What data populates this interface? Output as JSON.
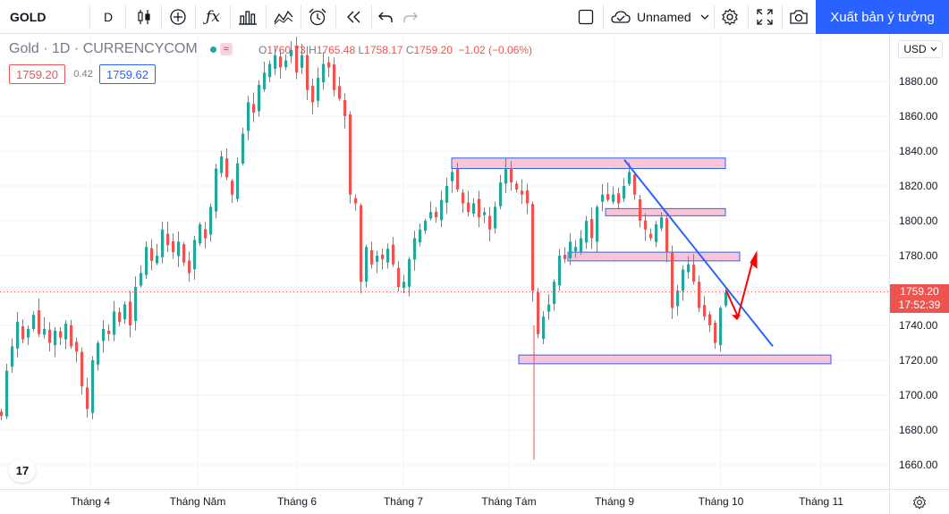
{
  "toolbar": {
    "symbol": "GOLD",
    "interval": "D",
    "layout_name": "Unnamed",
    "publish_label": "Xuất bản ý tưởng",
    "icons": [
      "candles-icon",
      "plus-circle-icon",
      "fx-icon",
      "bar-template-icon",
      "indicator-icon",
      "alarm-icon",
      "replay-icon",
      "undo-icon",
      "redo-icon",
      "checkbox-icon",
      "cloud-icon",
      "settings-icon",
      "fullscreen-icon",
      "camera-icon"
    ]
  },
  "legend": {
    "title": "Gold · 1D · CURRENCYCOM",
    "o_label": "O",
    "o": "1760.73",
    "h_label": "H",
    "h": "1765.48",
    "l_label": "L",
    "l": "1758.17",
    "c_label": "C",
    "c": "1759.20",
    "change": "−1.02 (−0.06%)",
    "bid": "1759.20",
    "spread": "0.42",
    "ask": "1759.62"
  },
  "price_axis": {
    "currency": "USD",
    "ticks": [
      "1880.00",
      "1860.00",
      "1840.00",
      "1820.00",
      "1800.00",
      "1780.00",
      "1760.00",
      "1740.00",
      "1720.00",
      "1700.00",
      "1680.00",
      "1660.00"
    ],
    "last_price": "1759.20",
    "countdown": "17:52:39"
  },
  "time_axis": {
    "labels": [
      "Tháng 4",
      "Tháng Năm",
      "Tháng 6",
      "Tháng 7",
      "Tháng Tám",
      "Tháng 9",
      "Tháng 10",
      "Tháng 11"
    ]
  },
  "colors": {
    "up": "#26a69a",
    "down": "#ef5350",
    "zone_fill": "#f8bbd0",
    "zone_border": "#2962ff",
    "trendline": "#2962ff",
    "arrow": "#ff0000",
    "accent": "#2962ff"
  },
  "chart_data": {
    "type": "candlestick",
    "symbol": "Gold",
    "interval": "1D",
    "ylim": [
      1655,
      1895
    ],
    "y_ticks": [
      1660,
      1680,
      1700,
      1720,
      1740,
      1760,
      1780,
      1800,
      1820,
      1840,
      1860,
      1880
    ],
    "x_labels": [
      "Tháng 4",
      "Tháng Năm",
      "Tháng 6",
      "Tháng 7",
      "Tháng Tám",
      "Tháng 9",
      "Tháng 10",
      "Tháng 11"
    ],
    "close_path": [
      [
        0,
        1688
      ],
      [
        6,
        1714
      ],
      [
        12,
        1728
      ],
      [
        18,
        1742
      ],
      [
        24,
        1732
      ],
      [
        30,
        1738
      ],
      [
        36,
        1746
      ],
      [
        42,
        1735
      ],
      [
        48,
        1738
      ],
      [
        54,
        1730
      ],
      [
        60,
        1737
      ],
      [
        66,
        1733
      ],
      [
        72,
        1741
      ],
      [
        78,
        1728
      ],
      [
        84,
        1725
      ],
      [
        90,
        1705
      ],
      [
        96,
        1692
      ],
      [
        102,
        1720
      ],
      [
        108,
        1730
      ],
      [
        114,
        1738
      ],
      [
        120,
        1735
      ],
      [
        126,
        1748
      ],
      [
        132,
        1742
      ],
      [
        138,
        1752
      ],
      [
        144,
        1740
      ],
      [
        150,
        1762
      ],
      [
        156,
        1770
      ],
      [
        162,
        1785
      ],
      [
        168,
        1777
      ],
      [
        174,
        1780
      ],
      [
        180,
        1795
      ],
      [
        186,
        1786
      ],
      [
        192,
        1782
      ],
      [
        198,
        1788
      ],
      [
        204,
        1776
      ],
      [
        210,
        1770
      ],
      [
        216,
        1789
      ],
      [
        222,
        1798
      ],
      [
        228,
        1790
      ],
      [
        234,
        1808
      ],
      [
        240,
        1830
      ],
      [
        246,
        1837
      ],
      [
        252,
        1825
      ],
      [
        258,
        1815
      ],
      [
        264,
        1833
      ],
      [
        270,
        1850
      ],
      [
        276,
        1868
      ],
      [
        282,
        1862
      ],
      [
        288,
        1878
      ],
      [
        294,
        1885
      ],
      [
        300,
        1890
      ],
      [
        306,
        1895
      ],
      [
        312,
        1888
      ],
      [
        318,
        1892
      ],
      [
        324,
        1898
      ],
      [
        330,
        1885
      ],
      [
        336,
        1895
      ],
      [
        342,
        1875
      ],
      [
        348,
        1868
      ],
      [
        354,
        1882
      ],
      [
        360,
        1890
      ],
      [
        366,
        1888
      ],
      [
        372,
        1875
      ],
      [
        378,
        1870
      ],
      [
        384,
        1860
      ],
      [
        390,
        1815
      ],
      [
        396,
        1810
      ],
      [
        402,
        1765
      ],
      [
        408,
        1785
      ],
      [
        414,
        1775
      ],
      [
        420,
        1780
      ],
      [
        426,
        1778
      ],
      [
        432,
        1784
      ],
      [
        438,
        1775
      ],
      [
        444,
        1762
      ],
      [
        450,
        1765
      ],
      [
        456,
        1778
      ],
      [
        462,
        1790
      ],
      [
        468,
        1795
      ],
      [
        474,
        1800
      ],
      [
        480,
        1805
      ],
      [
        486,
        1802
      ],
      [
        492,
        1812
      ],
      [
        498,
        1820
      ],
      [
        504,
        1828
      ],
      [
        510,
        1818
      ],
      [
        516,
        1810
      ],
      [
        522,
        1805
      ],
      [
        528,
        1810
      ],
      [
        534,
        1802
      ],
      [
        540,
        1805
      ],
      [
        546,
        1795
      ],
      [
        552,
        1808
      ],
      [
        558,
        1822
      ],
      [
        564,
        1830
      ],
      [
        570,
        1822
      ],
      [
        576,
        1818
      ],
      [
        582,
        1815
      ],
      [
        588,
        1810
      ],
      [
        594,
        1760
      ],
      [
        600,
        1735
      ],
      [
        606,
        1745
      ],
      [
        612,
        1752
      ],
      [
        618,
        1765
      ],
      [
        624,
        1780
      ],
      [
        630,
        1778
      ],
      [
        636,
        1788
      ],
      [
        642,
        1785
      ],
      [
        648,
        1790
      ],
      [
        654,
        1800
      ],
      [
        660,
        1790
      ],
      [
        666,
        1808
      ],
      [
        672,
        1815
      ],
      [
        678,
        1812
      ],
      [
        684,
        1815
      ],
      [
        690,
        1810
      ],
      [
        696,
        1820
      ],
      [
        702,
        1828
      ],
      [
        708,
        1815
      ],
      [
        714,
        1800
      ],
      [
        720,
        1795
      ],
      [
        726,
        1790
      ],
      [
        732,
        1798
      ],
      [
        738,
        1802
      ],
      [
        744,
        1782
      ],
      [
        750,
        1750
      ],
      [
        756,
        1760
      ],
      [
        762,
        1772
      ],
      [
        768,
        1775
      ],
      [
        774,
        1765
      ],
      [
        780,
        1750
      ],
      [
        786,
        1745
      ],
      [
        792,
        1740
      ],
      [
        798,
        1730
      ],
      [
        804,
        1750
      ],
      [
        810,
        1759
      ]
    ],
    "zones": [
      {
        "y1": 1830,
        "y2": 1836,
        "x_start": 505,
        "x_end": 811
      },
      {
        "y1": 1803,
        "y2": 1807,
        "x_start": 677,
        "x_end": 811
      },
      {
        "y1": 1777,
        "y2": 1782,
        "x_start": 635,
        "x_end": 827
      },
      {
        "y1": 1718,
        "y2": 1723,
        "x_start": 580,
        "x_end": 929
      }
    ],
    "trendline": {
      "from": [
        698,
        1835
      ],
      "to": [
        864,
        1728
      ]
    },
    "current_price": 1759.2,
    "grid": true
  }
}
